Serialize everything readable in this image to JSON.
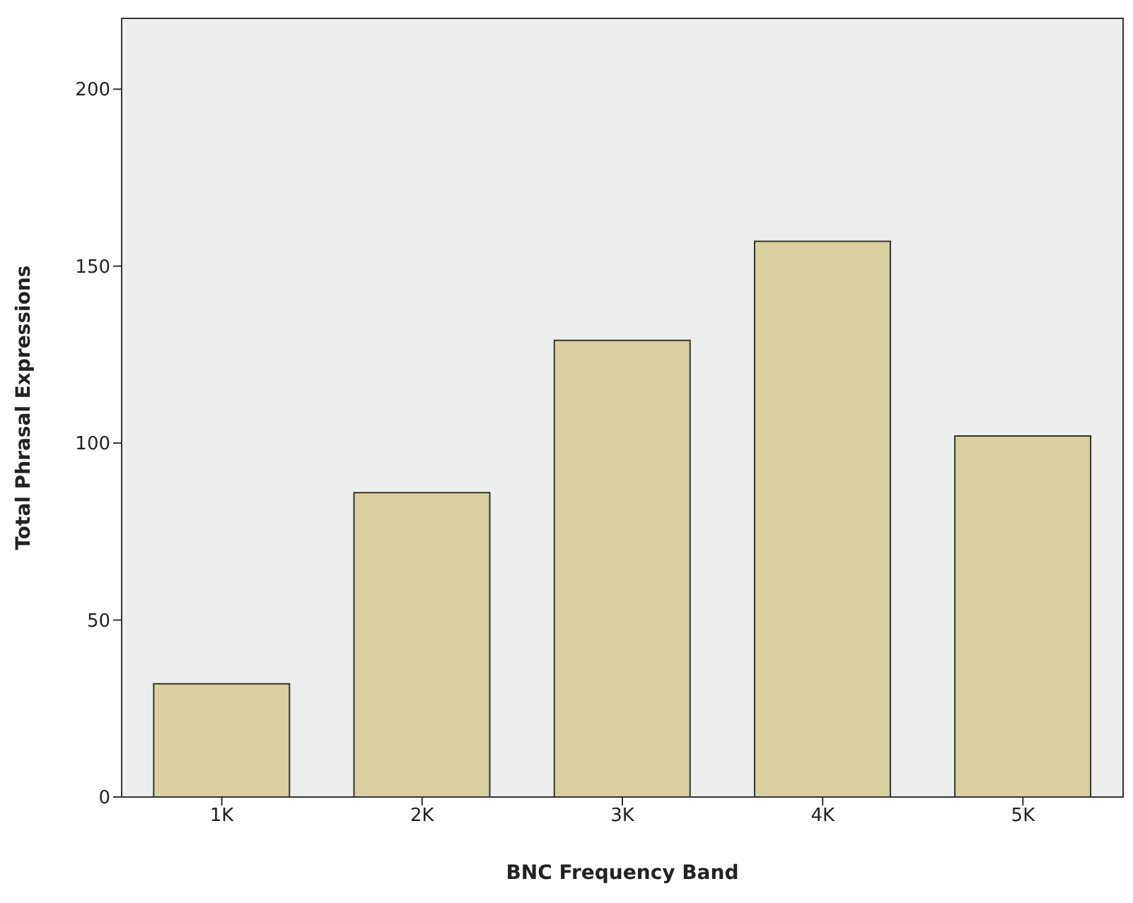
{
  "chart_data": {
    "type": "bar",
    "xlabel": "BNC Frequency Band",
    "ylabel": "Total Phrasal Expressions",
    "categories": [
      "1K",
      "2K",
      "3K",
      "4K",
      "5K"
    ],
    "values": [
      32,
      86,
      129,
      157,
      102
    ],
    "color": "#d9cf9f",
    "ylim": [
      0,
      220
    ],
    "yticks": [
      0,
      50,
      100,
      150,
      200
    ]
  }
}
